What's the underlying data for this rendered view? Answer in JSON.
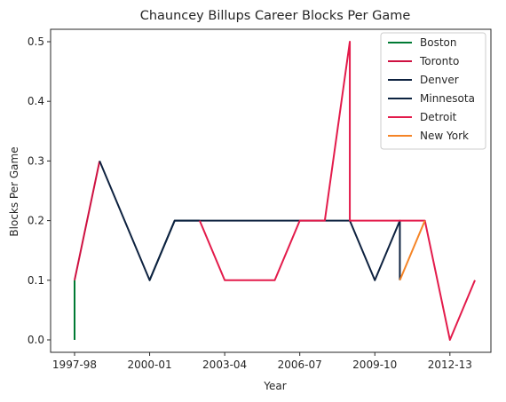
{
  "chart_data": {
    "type": "line",
    "title": "Chauncey Billups Career Blocks Per Game",
    "xlabel": "Year",
    "ylabel": "Blocks Per Game",
    "x_ticks": [
      "1997-98",
      "2000-01",
      "2003-04",
      "2006-07",
      "2009-10",
      "2012-13"
    ],
    "y_ticks": [
      "0.0",
      "0.1",
      "0.2",
      "0.3",
      "0.4",
      "0.5"
    ],
    "xlim": [
      0,
      16
    ],
    "ylim": [
      -0.02,
      0.52
    ],
    "grid": false,
    "legend_position": "top-right",
    "series": [
      {
        "name": "Boston",
        "color": "#007a33",
        "points": [
          [
            0,
            0.0
          ],
          [
            0,
            0.1
          ]
        ]
      },
      {
        "name": "Toronto",
        "color": "#ce1141",
        "points": [
          [
            0,
            0.1
          ],
          [
            1,
            0.3
          ]
        ]
      },
      {
        "name": "Denver",
        "color": "#0e2240",
        "points": [
          [
            1,
            0.3
          ],
          [
            3,
            0.1
          ],
          [
            4,
            0.2
          ],
          [
            5,
            0.2
          ],
          [
            11,
            0.2
          ],
          [
            12,
            0.1
          ],
          [
            13,
            0.2
          ],
          [
            13,
            0.1
          ]
        ]
      },
      {
        "name": "Minnesota",
        "color": "#0c2340",
        "points": [
          [
            3,
            0.1
          ],
          [
            4,
            0.2
          ],
          [
            5,
            0.2
          ]
        ]
      },
      {
        "name": "Detroit",
        "color": "#e31b4b",
        "points": [
          [
            5,
            0.2
          ],
          [
            6,
            0.1
          ],
          [
            7,
            0.1
          ],
          [
            8,
            0.1
          ],
          [
            9,
            0.2
          ],
          [
            10,
            0.2
          ],
          [
            11,
            0.5
          ],
          [
            11,
            0.2
          ],
          [
            14,
            0.2
          ],
          [
            15,
            0.0
          ],
          [
            16,
            0.1
          ]
        ]
      },
      {
        "name": "New York",
        "color": "#f58426",
        "points": [
          [
            13,
            0.1
          ],
          [
            14,
            0.2
          ]
        ]
      }
    ]
  }
}
